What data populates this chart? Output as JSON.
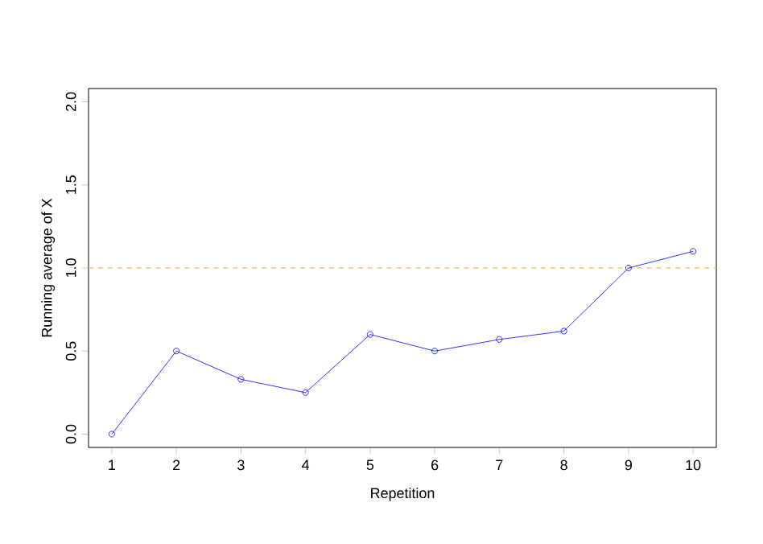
{
  "chart_data": {
    "type": "line",
    "xlabel": "Repetition",
    "ylabel": "Running average of X",
    "x": [
      1,
      2,
      3,
      4,
      5,
      6,
      7,
      8,
      9,
      10
    ],
    "series": [
      {
        "color": "#0000ff",
        "values": [
          0,
          0.5,
          0.33,
          0.25,
          0.6,
          0.5,
          0.57,
          0.62,
          1.0,
          1.1
        ],
        "marker": "circle",
        "line_style": "solid"
      }
    ],
    "xlim": [
      0.64,
      10.36
    ],
    "ylim": [
      -0.08,
      2.08
    ],
    "xticks": [
      1,
      2,
      3,
      4,
      5,
      6,
      7,
      8,
      9,
      10
    ],
    "yticks": [
      {
        "value": 0,
        "label": "0.0"
      },
      0.5,
      {
        "value": 1,
        "label": "1.0"
      },
      1.5,
      {
        "value": 2,
        "label": "2.0"
      }
    ],
    "ref_lines": [
      {
        "axis": "y",
        "value": 1,
        "color": "#f5c46a",
        "line_style": "dashed"
      }
    ]
  }
}
